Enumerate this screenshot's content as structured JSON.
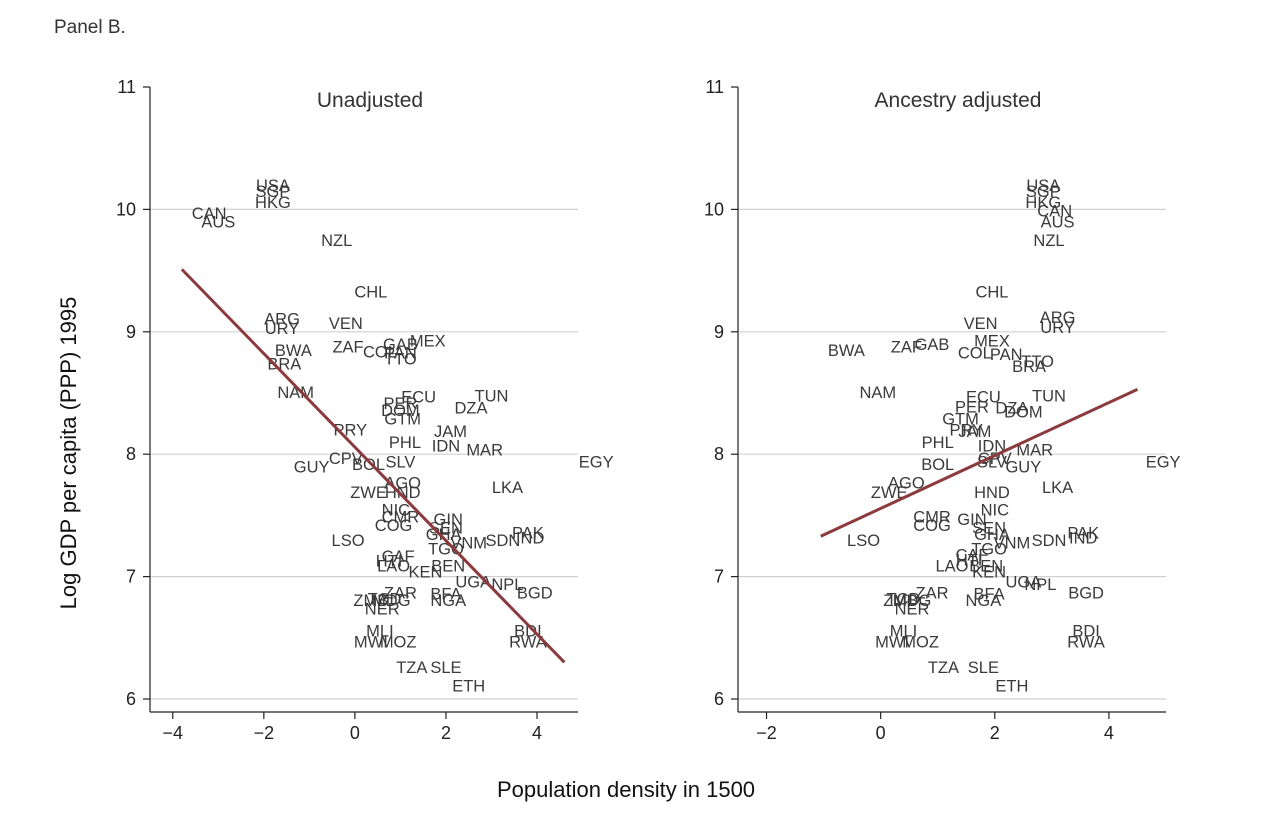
{
  "page_title": "Panel B.",
  "chart_data": {
    "type": "scatter",
    "xlabel": "Population density in 1500",
    "ylabel": "Log GDP per capita (PPP) 1995",
    "ylim": [
      6,
      11
    ],
    "yticks": [
      6,
      7,
      8,
      9,
      10,
      11
    ],
    "grid": true,
    "fit_color": "#8b3a3e",
    "panels": [
      {
        "title": "Unadjusted",
        "xlim": [
          -4.5,
          4.9
        ],
        "xticks": [
          -4,
          -2,
          0,
          2,
          4
        ],
        "xtick_labels": [
          "−4",
          "−2",
          "0",
          "2",
          "4"
        ],
        "fit_line": [
          [
            -3.8,
            9.51
          ],
          [
            4.6,
            6.3
          ]
        ],
        "points": [
          {
            "label": "USA",
            "x": -1.8,
            "y": 10.2
          },
          {
            "label": "SGP",
            "x": -1.8,
            "y": 10.15
          },
          {
            "label": "HKG",
            "x": -1.8,
            "y": 10.06
          },
          {
            "label": "CAN",
            "x": -3.2,
            "y": 9.97
          },
          {
            "label": "AUS",
            "x": -3.0,
            "y": 9.9
          },
          {
            "label": "NZL",
            "x": -0.4,
            "y": 9.75
          },
          {
            "label": "CHL",
            "x": 0.35,
            "y": 9.33
          },
          {
            "label": "ARG",
            "x": -1.6,
            "y": 9.11
          },
          {
            "label": "URY",
            "x": -1.6,
            "y": 9.03
          },
          {
            "label": "VEN",
            "x": -0.2,
            "y": 9.07
          },
          {
            "label": "ZAF",
            "x": -0.15,
            "y": 8.88
          },
          {
            "label": "GAB",
            "x": 1.0,
            "y": 8.9
          },
          {
            "label": "MEX",
            "x": 1.6,
            "y": 8.93
          },
          {
            "label": "BWA",
            "x": -1.35,
            "y": 8.85
          },
          {
            "label": "BRA",
            "x": -1.55,
            "y": 8.74
          },
          {
            "label": "COL",
            "x": 0.55,
            "y": 8.84
          },
          {
            "label": "PAN",
            "x": 1.0,
            "y": 8.83
          },
          {
            "label": "TTO",
            "x": 1.0,
            "y": 8.78
          },
          {
            "label": "NAM",
            "x": -1.3,
            "y": 8.51
          },
          {
            "label": "ECU",
            "x": 1.4,
            "y": 8.47
          },
          {
            "label": "TUN",
            "x": 3.0,
            "y": 8.48
          },
          {
            "label": "PER",
            "x": 1.0,
            "y": 8.42
          },
          {
            "label": "DZA",
            "x": 2.55,
            "y": 8.38
          },
          {
            "label": "DOM",
            "x": 1.0,
            "y": 8.36
          },
          {
            "label": "GTM",
            "x": 1.05,
            "y": 8.29
          },
          {
            "label": "JAM",
            "x": 2.1,
            "y": 8.19
          },
          {
            "label": "PRY",
            "x": -0.1,
            "y": 8.2
          },
          {
            "label": "PHL",
            "x": 1.1,
            "y": 8.1
          },
          {
            "label": "IDN",
            "x": 2.0,
            "y": 8.07
          },
          {
            "label": "MAR",
            "x": 2.85,
            "y": 8.04
          },
          {
            "label": "CPV",
            "x": -0.2,
            "y": 7.97
          },
          {
            "label": "BOL",
            "x": 0.3,
            "y": 7.92
          },
          {
            "label": "SLV",
            "x": 1.0,
            "y": 7.94
          },
          {
            "label": "GUY",
            "x": -0.95,
            "y": 7.9
          },
          {
            "label": "EGY",
            "x": 5.3,
            "y": 7.94
          },
          {
            "label": "AGO",
            "x": 1.05,
            "y": 7.77
          },
          {
            "label": "LKA",
            "x": 3.35,
            "y": 7.73
          },
          {
            "label": "ZWE",
            "x": 0.3,
            "y": 7.69
          },
          {
            "label": "HND",
            "x": 1.05,
            "y": 7.69
          },
          {
            "label": "NIC",
            "x": 0.9,
            "y": 7.55
          },
          {
            "label": "CMR",
            "x": 1.0,
            "y": 7.49
          },
          {
            "label": "GIN",
            "x": 2.05,
            "y": 7.47
          },
          {
            "label": "COG",
            "x": 0.85,
            "y": 7.42
          },
          {
            "label": "SEN",
            "x": 2.0,
            "y": 7.4
          },
          {
            "label": "GHA",
            "x": 1.95,
            "y": 7.35
          },
          {
            "label": "PAK",
            "x": 3.8,
            "y": 7.36
          },
          {
            "label": "IND",
            "x": 3.85,
            "y": 7.32
          },
          {
            "label": "SDN",
            "x": 3.25,
            "y": 7.3
          },
          {
            "label": "VNM",
            "x": 2.5,
            "y": 7.28
          },
          {
            "label": "LSO",
            "x": -0.15,
            "y": 7.3
          },
          {
            "label": "TGO",
            "x": 2.0,
            "y": 7.23
          },
          {
            "label": "CAF",
            "x": 0.95,
            "y": 7.17
          },
          {
            "label": "HTI",
            "x": 0.75,
            "y": 7.13
          },
          {
            "label": "LAO",
            "x": 0.85,
            "y": 7.09
          },
          {
            "label": "BEN",
            "x": 2.05,
            "y": 7.09
          },
          {
            "label": "KEN",
            "x": 1.55,
            "y": 7.04
          },
          {
            "label": "UGA",
            "x": 2.6,
            "y": 6.96
          },
          {
            "label": "NPL",
            "x": 3.35,
            "y": 6.94
          },
          {
            "label": "BGD",
            "x": 3.95,
            "y": 6.87
          },
          {
            "label": "ZAR",
            "x": 1.0,
            "y": 6.87
          },
          {
            "label": "BFA",
            "x": 2.0,
            "y": 6.86
          },
          {
            "label": "NGA",
            "x": 2.05,
            "y": 6.81
          },
          {
            "label": "ZMB",
            "x": 0.35,
            "y": 6.81
          },
          {
            "label": "TCD",
            "x": 0.65,
            "y": 6.82
          },
          {
            "label": "MDG",
            "x": 0.8,
            "y": 6.81
          },
          {
            "label": "NER",
            "x": 0.6,
            "y": 6.74
          },
          {
            "label": "MLI",
            "x": 0.55,
            "y": 6.56
          },
          {
            "label": "BDI",
            "x": 3.8,
            "y": 6.56
          },
          {
            "label": "MWI",
            "x": 0.35,
            "y": 6.47
          },
          {
            "label": "MOZ",
            "x": 0.95,
            "y": 6.47
          },
          {
            "label": "RWA",
            "x": 3.8,
            "y": 6.47
          },
          {
            "label": "TZA",
            "x": 1.25,
            "y": 6.26
          },
          {
            "label": "SLE",
            "x": 2.0,
            "y": 6.26
          },
          {
            "label": "ETH",
            "x": 2.5,
            "y": 6.11
          }
        ]
      },
      {
        "title": "Ancestry adjusted",
        "xlim": [
          -2.5,
          5.0
        ],
        "xticks": [
          -2,
          0,
          2,
          4
        ],
        "xtick_labels": [
          "−2",
          "0",
          "2",
          "4"
        ],
        "fit_line": [
          [
            -1.05,
            7.33
          ],
          [
            4.5,
            8.53
          ]
        ],
        "points": [
          {
            "label": "USA",
            "x": 2.85,
            "y": 10.2
          },
          {
            "label": "SGP",
            "x": 2.85,
            "y": 10.15
          },
          {
            "label": "HKG",
            "x": 2.85,
            "y": 10.06
          },
          {
            "label": "CAN",
            "x": 3.05,
            "y": 9.99
          },
          {
            "label": "AUS",
            "x": 3.1,
            "y": 9.9
          },
          {
            "label": "NZL",
            "x": 2.95,
            "y": 9.75
          },
          {
            "label": "CHL",
            "x": 1.95,
            "y": 9.33
          },
          {
            "label": "ARG",
            "x": 3.1,
            "y": 9.12
          },
          {
            "label": "URY",
            "x": 3.1,
            "y": 9.04
          },
          {
            "label": "VEN",
            "x": 1.75,
            "y": 9.07
          },
          {
            "label": "BWA",
            "x": -0.6,
            "y": 8.85
          },
          {
            "label": "ZAF",
            "x": 0.45,
            "y": 8.88
          },
          {
            "label": "GAB",
            "x": 0.9,
            "y": 8.9
          },
          {
            "label": "MEX",
            "x": 1.95,
            "y": 8.93
          },
          {
            "label": "COL",
            "x": 1.65,
            "y": 8.83
          },
          {
            "label": "PAN",
            "x": 2.2,
            "y": 8.82
          },
          {
            "label": "TTO",
            "x": 2.75,
            "y": 8.76
          },
          {
            "label": "BRA",
            "x": 2.6,
            "y": 8.72
          },
          {
            "label": "NAM",
            "x": -0.05,
            "y": 8.51
          },
          {
            "label": "ECU",
            "x": 1.8,
            "y": 8.47
          },
          {
            "label": "TUN",
            "x": 2.95,
            "y": 8.48
          },
          {
            "label": "PER",
            "x": 1.6,
            "y": 8.39
          },
          {
            "label": "DZA",
            "x": 2.3,
            "y": 8.38
          },
          {
            "label": "DOM",
            "x": 2.5,
            "y": 8.35
          },
          {
            "label": "GTM",
            "x": 1.4,
            "y": 8.29
          },
          {
            "label": "PRY",
            "x": 1.5,
            "y": 8.2
          },
          {
            "label": "JAM",
            "x": 1.65,
            "y": 8.19
          },
          {
            "label": "PHL",
            "x": 1.0,
            "y": 8.1
          },
          {
            "label": "IDN",
            "x": 1.95,
            "y": 8.07
          },
          {
            "label": "MAR",
            "x": 2.7,
            "y": 8.04
          },
          {
            "label": "CPV",
            "x": 2.0,
            "y": 7.97
          },
          {
            "label": "SLV",
            "x": 1.95,
            "y": 7.94
          },
          {
            "label": "BOL",
            "x": 1.0,
            "y": 7.92
          },
          {
            "label": "GUY",
            "x": 2.5,
            "y": 7.9
          },
          {
            "label": "EGY",
            "x": 4.95,
            "y": 7.94
          },
          {
            "label": "AGO",
            "x": 0.45,
            "y": 7.77
          },
          {
            "label": "LKA",
            "x": 3.1,
            "y": 7.73
          },
          {
            "label": "ZWE",
            "x": 0.15,
            "y": 7.69
          },
          {
            "label": "HND",
            "x": 1.95,
            "y": 7.69
          },
          {
            "label": "NIC",
            "x": 2.0,
            "y": 7.55
          },
          {
            "label": "CMR",
            "x": 0.9,
            "y": 7.49
          },
          {
            "label": "GIN",
            "x": 1.6,
            "y": 7.47
          },
          {
            "label": "COG",
            "x": 0.9,
            "y": 7.42
          },
          {
            "label": "SEN",
            "x": 1.9,
            "y": 7.4
          },
          {
            "label": "GHA",
            "x": 1.95,
            "y": 7.35
          },
          {
            "label": "PAK",
            "x": 3.55,
            "y": 7.36
          },
          {
            "label": "IND",
            "x": 3.55,
            "y": 7.32
          },
          {
            "label": "SDN",
            "x": 2.95,
            "y": 7.3
          },
          {
            "label": "VNM",
            "x": 2.3,
            "y": 7.28
          },
          {
            "label": "LSO",
            "x": -0.3,
            "y": 7.3
          },
          {
            "label": "TGO",
            "x": 1.9,
            "y": 7.23
          },
          {
            "label": "CAF",
            "x": 1.6,
            "y": 7.18
          },
          {
            "label": "HTI",
            "x": 1.55,
            "y": 7.14
          },
          {
            "label": "LAO",
            "x": 1.25,
            "y": 7.09
          },
          {
            "label": "BEN",
            "x": 1.85,
            "y": 7.09
          },
          {
            "label": "KEN",
            "x": 1.9,
            "y": 7.04
          },
          {
            "label": "UGA",
            "x": 2.5,
            "y": 6.96
          },
          {
            "label": "NPL",
            "x": 2.8,
            "y": 6.94
          },
          {
            "label": "BGD",
            "x": 3.6,
            "y": 6.87
          },
          {
            "label": "ZAR",
            "x": 0.9,
            "y": 6.87
          },
          {
            "label": "BFA",
            "x": 1.9,
            "y": 6.86
          },
          {
            "label": "NGA",
            "x": 1.8,
            "y": 6.81
          },
          {
            "label": "ZMB",
            "x": 0.35,
            "y": 6.81
          },
          {
            "label": "TCD",
            "x": 0.4,
            "y": 6.82
          },
          {
            "label": "MDG",
            "x": 0.55,
            "y": 6.81
          },
          {
            "label": "NER",
            "x": 0.55,
            "y": 6.74
          },
          {
            "label": "MLI",
            "x": 0.4,
            "y": 6.56
          },
          {
            "label": "BDI",
            "x": 3.6,
            "y": 6.56
          },
          {
            "label": "MWI",
            "x": 0.2,
            "y": 6.47
          },
          {
            "label": "MOZ",
            "x": 0.7,
            "y": 6.47
          },
          {
            "label": "RWA",
            "x": 3.6,
            "y": 6.47
          },
          {
            "label": "TZA",
            "x": 1.1,
            "y": 6.26
          },
          {
            "label": "SLE",
            "x": 1.8,
            "y": 6.26
          },
          {
            "label": "ETH",
            "x": 2.3,
            "y": 6.11
          }
        ]
      }
    ]
  }
}
